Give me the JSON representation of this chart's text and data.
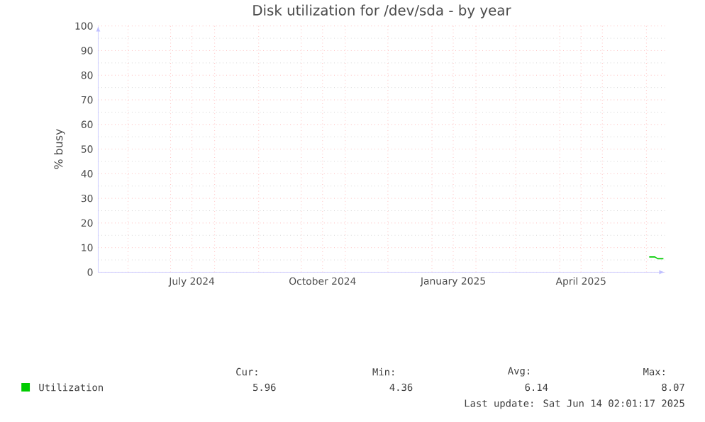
{
  "chart_data": {
    "type": "line",
    "title": "Disk utilization for /dev/sda - by year",
    "ylabel": "% busy",
    "series": [
      {
        "name": "Utilization",
        "color": "#00cc00",
        "x": [
          "2025-06-03",
          "2025-06-07",
          "2025-06-09",
          "2025-06-13"
        ],
        "values": [
          6.2,
          6.2,
          5.5,
          5.5
        ]
      }
    ],
    "xlim": [
      "2024-05-11",
      "2025-06-14"
    ],
    "xticks": [
      {
        "value": "2024-06-01",
        "label": null
      },
      {
        "value": "2024-07-01",
        "label": null
      },
      {
        "value": "2024-07-16",
        "label": "July 2024"
      },
      {
        "value": "2024-08-01",
        "label": null
      },
      {
        "value": "2024-09-01",
        "label": null
      },
      {
        "value": "2024-10-01",
        "label": null
      },
      {
        "value": "2024-10-16",
        "label": "October 2024"
      },
      {
        "value": "2024-11-01",
        "label": null
      },
      {
        "value": "2024-12-01",
        "label": null
      },
      {
        "value": "2025-01-01",
        "label": null
      },
      {
        "value": "2025-01-16",
        "label": "January 2025"
      },
      {
        "value": "2025-02-01",
        "label": null
      },
      {
        "value": "2025-03-01",
        "label": null
      },
      {
        "value": "2025-04-01",
        "label": null
      },
      {
        "value": "2025-04-16",
        "label": "April 2025"
      },
      {
        "value": "2025-05-01",
        "label": null
      },
      {
        "value": "2025-06-01",
        "label": null
      }
    ],
    "ylim": [
      0,
      100
    ],
    "yticks": [
      0,
      10,
      20,
      30,
      40,
      50,
      60,
      70,
      80,
      90,
      100
    ],
    "grid": true,
    "legend": "bottom left",
    "marker": "none",
    "line_style": "solid",
    "annotations": [
      "Cur:",
      "5.96",
      "Min:",
      "4.36",
      "Avg:",
      "6.14",
      "Max:",
      "8.07",
      "Last update: Sat Jun 14 02:01:17 2025"
    ]
  }
}
